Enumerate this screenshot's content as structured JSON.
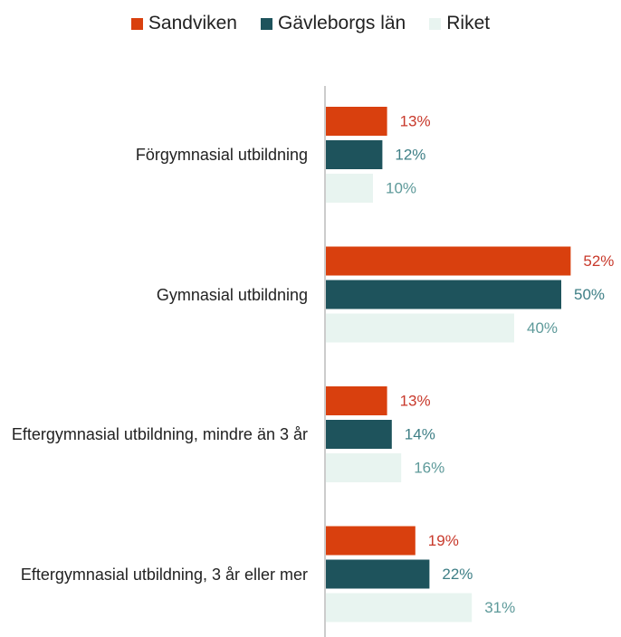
{
  "chart_data": {
    "type": "hbar",
    "categories": [
      "Förgymnasial utbildning",
      "Gymnasial utbildning",
      "Eftergymnasial utbildning, mindre än 3 år",
      "Eftergymnasial utbildning, 3 år eller mer"
    ],
    "series": [
      {
        "name": "Sandviken",
        "color": "#d9400e",
        "label_color": "#c8392b",
        "values": [
          13,
          52,
          13,
          19
        ],
        "value_labels": [
          "13%",
          "52%",
          "13%",
          "19%"
        ]
      },
      {
        "name": "Gävleborgs län",
        "color": "#1e535c",
        "label_color": "#3e7f86",
        "values": [
          12,
          50,
          14,
          22
        ],
        "value_labels": [
          "12%",
          "50%",
          "14%",
          "22%"
        ]
      },
      {
        "name": "Riket",
        "color": "#e8f4f0",
        "label_color": "#5e9a9a",
        "values": [
          10,
          40,
          16,
          31
        ],
        "value_labels": [
          "10%",
          "40%",
          "16%",
          "31%"
        ]
      }
    ],
    "xlim": [
      0,
      60
    ],
    "legend": "top"
  }
}
